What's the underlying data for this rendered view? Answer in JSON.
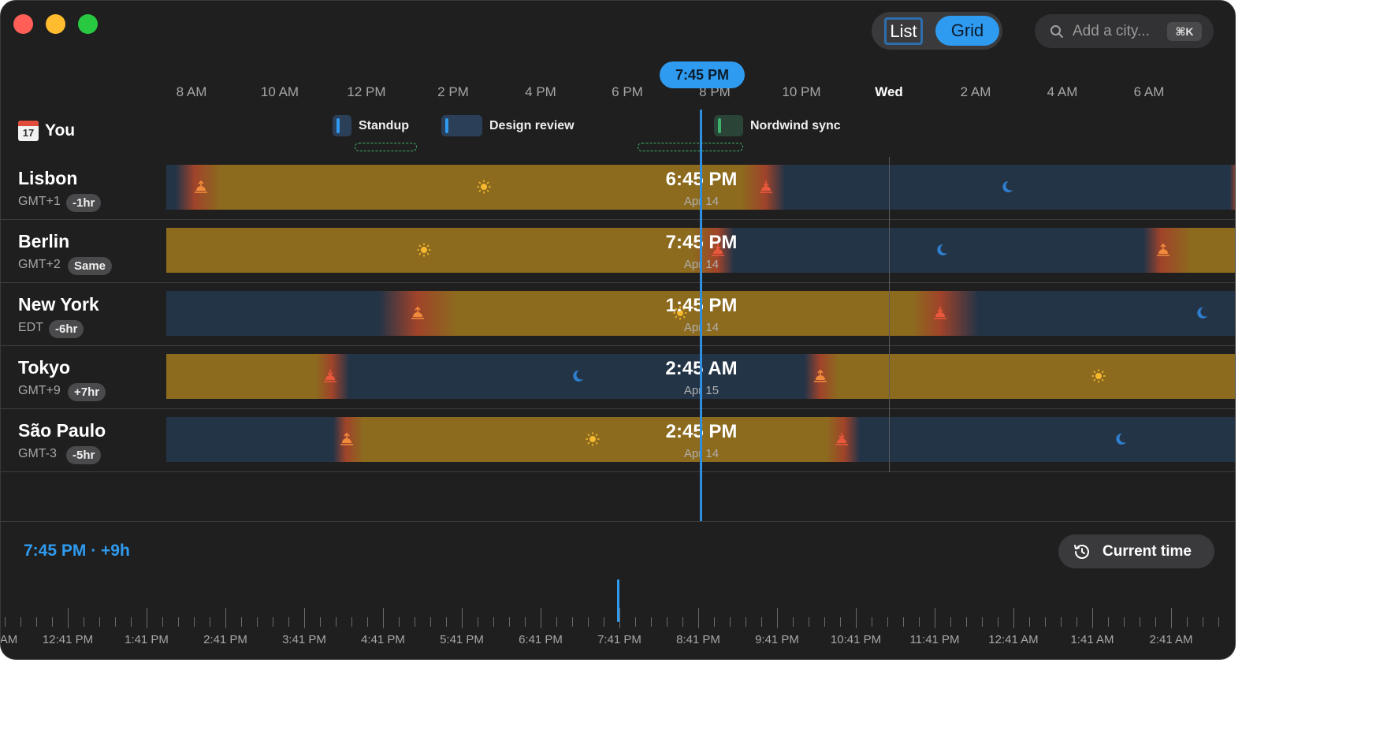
{
  "window": {
    "view_toggle": {
      "list_label": "List",
      "grid_label": "Grid",
      "selected": "Grid"
    },
    "search": {
      "placeholder": "Add a city...",
      "shortcut": "⌘K"
    }
  },
  "timeline": {
    "hour_labels": [
      "8 AM",
      "10 AM",
      "12 PM",
      "2 PM",
      "4 PM",
      "6 PM",
      "8 PM",
      "10 PM",
      "Wed",
      "2 AM",
      "4 AM",
      "6 AM"
    ],
    "current_marker": "7:45 PM"
  },
  "you": {
    "icon_date": "17",
    "label": "You",
    "events": [
      {
        "label": "Standup",
        "color": "blue"
      },
      {
        "label": "Design review",
        "color": "blue"
      },
      {
        "label": "Nordwind sync",
        "color": "green"
      }
    ]
  },
  "cities": [
    {
      "name": "Lisbon",
      "tz": "GMT+1",
      "offset": "-1hr",
      "time": "6:45 PM",
      "date": "Apr 14"
    },
    {
      "name": "Berlin",
      "tz": "GMT+2",
      "offset": "Same",
      "time": "7:45 PM",
      "date": "Apr 14"
    },
    {
      "name": "New York",
      "tz": "EDT",
      "offset": "-6hr",
      "time": "1:45 PM",
      "date": "Apr 14"
    },
    {
      "name": "Tokyo",
      "tz": "GMT+9",
      "offset": "+7hr",
      "time": "2:45 AM",
      "date": "Apr 15"
    },
    {
      "name": "São Paulo",
      "tz": "GMT-3",
      "offset": "-5hr",
      "time": "2:45 PM",
      "date": "Apr 14"
    }
  ],
  "status": {
    "text": "7:45 PM · +9h"
  },
  "current_time_button": {
    "label": "Current time"
  },
  "scrubber": {
    "labels": [
      "AM",
      "12:41 PM",
      "1:41 PM",
      "2:41 PM",
      "3:41 PM",
      "4:41 PM",
      "5:41 PM",
      "6:41 PM",
      "7:41 PM",
      "8:41 PM",
      "9:41 PM",
      "10:41 PM",
      "11:41 PM",
      "12:41 AM",
      "1:41 AM",
      "2:41 AM"
    ]
  },
  "colors": {
    "accent": "#2f9bf0",
    "day": "#8c6a1e",
    "night": "#243447",
    "event_green": "#3fb16a"
  }
}
